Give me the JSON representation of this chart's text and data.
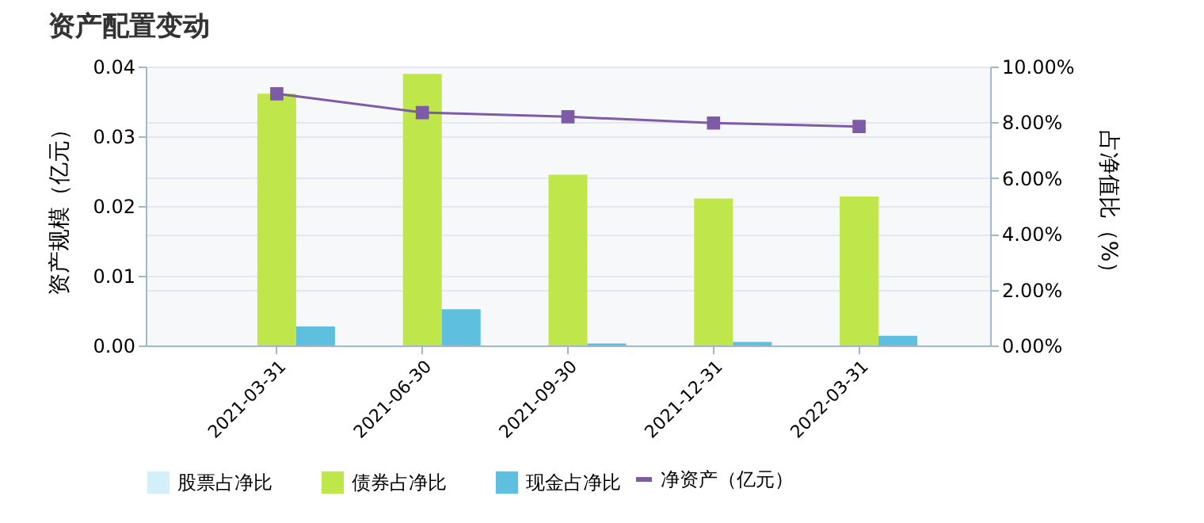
{
  "chart_data": {
    "type": "bar",
    "title": "资产配置变动",
    "ylabel": "资产规模（亿元）",
    "y2label": "占净值比（%）",
    "categories": [
      "2021-03-31",
      "2021-06-30",
      "2021-09-30",
      "2021-12-31",
      "2022-03-31"
    ],
    "series": [
      {
        "name": "股票占净比",
        "axis": "y2",
        "color": "#d3f0fa",
        "values": [
          0,
          0,
          0,
          0,
          0
        ]
      },
      {
        "name": "债券占净比",
        "axis": "y2",
        "color": "#bfe64a",
        "values": [
          9.03,
          9.74,
          6.12,
          5.27,
          5.34
        ]
      },
      {
        "name": "现金占净比",
        "axis": "y2",
        "color": "#5fbfdf",
        "values": [
          0.68,
          1.3,
          0.07,
          0.13,
          0.35
        ]
      },
      {
        "name": "净资产（亿元）",
        "type": "line",
        "axis": "y",
        "color": "#7d5ba6",
        "values": [
          0.0361,
          0.0334,
          0.0328,
          0.0319,
          0.0314
        ]
      }
    ],
    "ylim": [
      0,
      0.04
    ],
    "yticks": [
      {
        "value": 0,
        "label": "0.00"
      },
      {
        "value": 0.01,
        "label": "0.01"
      },
      {
        "value": 0.02,
        "label": "0.02"
      },
      {
        "value": 0.03,
        "label": "0.03"
      },
      {
        "value": 0.04,
        "label": "0.04"
      }
    ],
    "y2lim": [
      0,
      10
    ],
    "y2ticks": [
      {
        "value": 0,
        "label": "0.00%"
      },
      {
        "value": 2,
        "label": "2.00%"
      },
      {
        "value": 4,
        "label": "4.00%"
      },
      {
        "value": 6,
        "label": "6.00%"
      },
      {
        "value": 8,
        "label": "8.00%"
      },
      {
        "value": 10,
        "label": "10.00%"
      }
    ],
    "grid": "y",
    "legend": "bottom",
    "marker": "square",
    "line_style": "solid"
  }
}
